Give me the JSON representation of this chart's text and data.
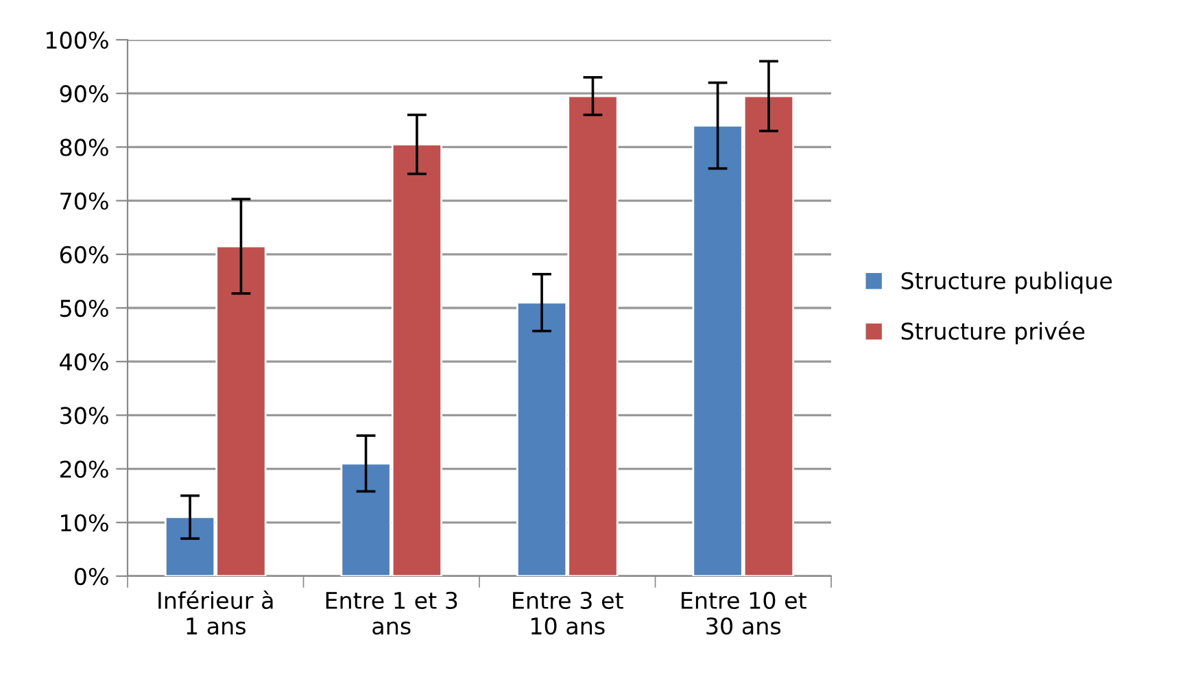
{
  "chart_data": {
    "type": "bar",
    "categories": [
      "Inférieur à 1 ans",
      "Entre 1 et 3 ans",
      "Entre 3 et 10 ans",
      "Entre 10 et 30 ans"
    ],
    "series": [
      {
        "name": "Structure publique",
        "color": "#4f81bd",
        "values": [
          11,
          21,
          51,
          84
        ],
        "errors": [
          4,
          5.2,
          5.3,
          8
        ]
      },
      {
        "name": "Structure privée",
        "color": "#c0504d",
        "values": [
          61.5,
          80.5,
          89.5,
          89.5
        ],
        "errors": [
          8.8,
          5.5,
          3.5,
          6.5
        ]
      }
    ],
    "ylim": [
      0,
      100
    ],
    "yticks": [
      {
        "value": 0,
        "label": "0%"
      },
      {
        "value": 10,
        "label": "10%"
      },
      {
        "value": 20,
        "label": "20%"
      },
      {
        "value": 30,
        "label": "30%"
      },
      {
        "value": 40,
        "label": "40%"
      },
      {
        "value": 50,
        "label": "50%"
      },
      {
        "value": 60,
        "label": "60%"
      },
      {
        "value": 70,
        "label": "70%"
      },
      {
        "value": 80,
        "label": "80%"
      },
      {
        "value": 90,
        "label": "90%"
      },
      {
        "value": 100,
        "label": "100%"
      }
    ],
    "grid": "y",
    "legend": "right"
  }
}
